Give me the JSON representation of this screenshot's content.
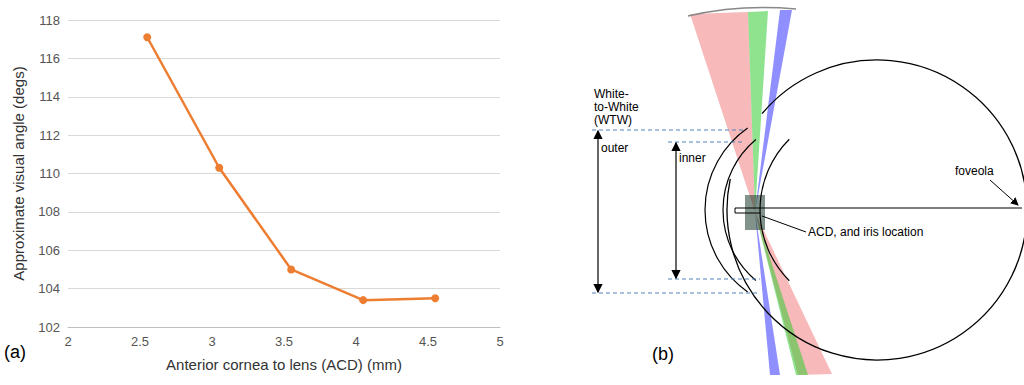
{
  "chart_data": {
    "type": "line",
    "panel_label": "(a)",
    "x_label": "Anterior cornea to lens (ACD) (mm)",
    "y_label": "Approximate visual angle (degs)",
    "x": [
      2.55,
      3.05,
      3.55,
      4.05,
      4.55
    ],
    "values": [
      117.1,
      110.3,
      105.0,
      103.4,
      103.5
    ],
    "color": "#ed7d31",
    "marker": "circle",
    "xlim": [
      2,
      5
    ],
    "xticks": [
      2,
      2.5,
      3,
      3.5,
      4,
      4.5,
      5
    ],
    "ylim": [
      102,
      118
    ],
    "yticks": [
      102,
      104,
      106,
      108,
      110,
      112,
      114,
      116,
      118
    ],
    "grid": true
  },
  "diagram": {
    "panel_label": "(b)",
    "labels": {
      "wtw": "White-to-White (WTW)",
      "outer": "outer",
      "inner": "inner",
      "foveola": "foveola",
      "acd": "ACD, and iris location"
    }
  }
}
